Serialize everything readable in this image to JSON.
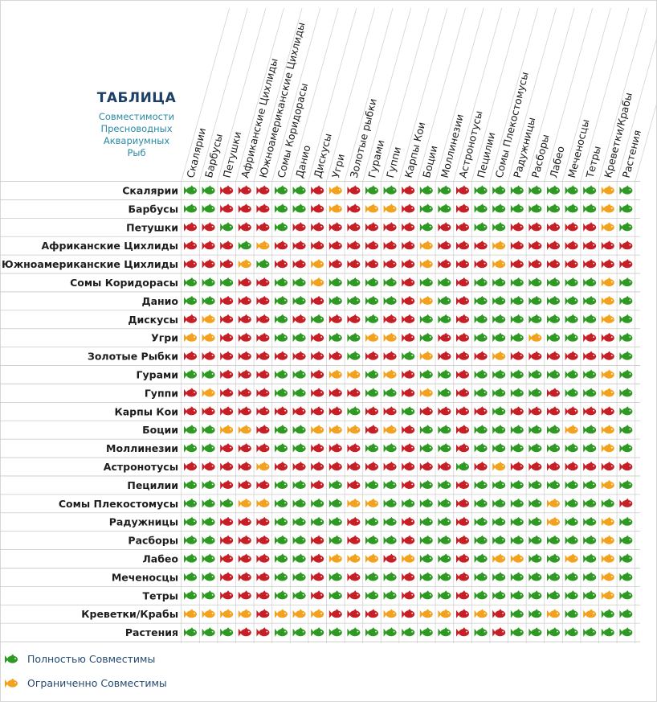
{
  "title": {
    "main": "ТАБЛИЦА",
    "sub": "Совместимости\nПресноводных\nАквариумных\nРыб"
  },
  "colors": {
    "green": "#2f9a23",
    "orange": "#f3a21f",
    "red": "#c62026"
  },
  "legend": [
    {
      "label": "Полностью Совместимы",
      "level": "green"
    },
    {
      "label": "Ограниченно Совместимы",
      "level": "orange"
    }
  ],
  "chart_data": {
    "type": "table",
    "columns": [
      "Скалярии",
      "Барбусы",
      "Петушки",
      "Африканские Цихлиды",
      "Южноамериканские Цихлиды",
      "Сомы Коридорасы",
      "Данио",
      "Дискусы",
      "Угри",
      "Золотые рыбки",
      "Гурами",
      "Гуппи",
      "Карпы Кои",
      "Боции",
      "Моллинезии",
      "Астронотусы",
      "Пецилии",
      "Сомы Плекостомусы",
      "Радужницы",
      "Расборы",
      "Лабео",
      "Меченосцы",
      "Тетры",
      "Креветки/Крабы",
      "Растения"
    ],
    "rows": [
      "Скалярии",
      "Барбусы",
      "Петушки",
      "Африканские Цихлиды",
      "Южноамериканские Цихлиды",
      "Сомы Коридорасы",
      "Данио",
      "Дискусы",
      "Угри",
      "Золотые Рыбки",
      "Гурами",
      "Гуппи",
      "Карпы Кои",
      "Боции",
      "Моллинезии",
      "Астронотусы",
      "Пецилии",
      "Сомы Плекостомусы",
      "Радужницы",
      "Расборы",
      "Лабео",
      "Меченосцы",
      "Тетры",
      "Креветки/Крабы",
      "Растения"
    ],
    "cells": [
      "GGRRRGGRORGGRGGRGGGGGGGOG",
      "GGRRRGGROROORGGRGGGGGGGOG",
      "RRGRRGRRRRRRRGRRGGRRRRROG",
      "RRRGORRRRRRRRORRRORRRRRRR",
      "RRROGRRORRRRRORRRORRRRRRR",
      "GGGRRGGOGGGGRGGRGGGGGGGOG",
      "GGRRRGGRGGGGROGRGGGGGGGOG",
      "RORRRGRGRRGRRGGRGGGGGGGOG",
      "OORRRGGRGGOORGRRGGGOGGRRG",
      "RRRRRRRRRGRRGORRRORRRRRRG",
      "GGRRRGGROOGORGGRGGGGGGGOG",
      "RORRRGGRRRGGROGRGGGGRGGOG",
      "RRRRRRRRRGRRGRRRRGRRRRRRG",
      "GGOORGGOOORORGGRGGGGGOGOG",
      "GGRRRGGRRRGGRGGRGGGGGGGOG",
      "RRRRORRRRRRRRRRGRORRRRRRR",
      "GGRRRGGRGRGGRGGRGGGGGGGOG",
      "GGGOOGGGGOOGGGGRGGGGOGGGR",
      "GGRRRGGGGRGGRGGRGGGGOGGOG",
      "GGRRRGGRGRGGRGGRGGGGGGGOG",
      "GGRRRGGROOOROGGRGOOGGOGOG",
      "GGRRRGGRGRGGRGGRGGGGGGGOG",
      "GGRRRGGRGRGGRGGRGGGGGGGOG",
      "OOOOROOORRROROORORGGOGOGG",
      "GGGRRGGGGGGGGGGRGRGGGGGGG"
    ]
  }
}
